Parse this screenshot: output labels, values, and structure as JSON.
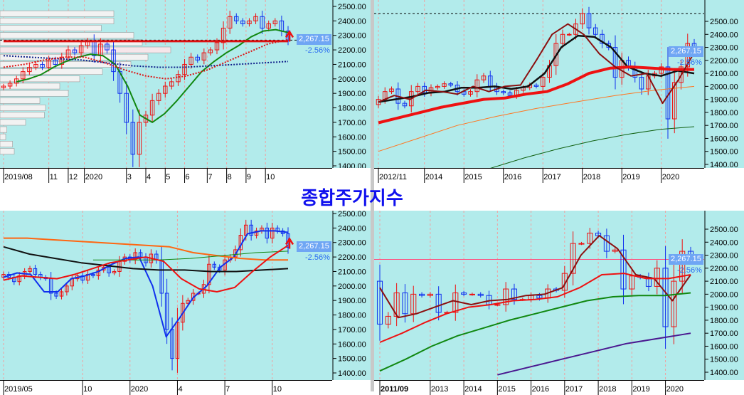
{
  "title": "종합주가지수",
  "price": {
    "current": "2,267.15",
    "change": "-2.56%",
    "current_value": 2267.15
  },
  "colors": {
    "background": "#b2ebeb",
    "up": "#ee1111",
    "down": "#1030ee",
    "title": "#1010ee"
  },
  "chart_data": [
    {
      "id": "daily-volume-profile",
      "type": "candlestick",
      "ylim": [
        1400,
        2500
      ],
      "yticks": [
        1400,
        1500,
        1600,
        1700,
        1800,
        1900,
        2000,
        2100,
        2200,
        2300,
        2400,
        2500
      ],
      "ytick_labels": [
        "1400.00",
        "1500.00",
        "1600.00",
        "1700.00",
        "1800.00",
        "1900.00",
        "2000.00",
        "2100.00",
        "2200.00",
        "2300.00",
        "2400.00",
        "2500.00"
      ],
      "first_open": 1940,
      "closes": [
        1950,
        1970,
        2000,
        2050,
        2080,
        2100,
        2080,
        2130,
        2100,
        2150,
        2200,
        2180,
        2230,
        2260,
        2160,
        2240,
        2200,
        2050,
        1900,
        1700,
        1480,
        1700,
        1750,
        1850,
        1900,
        1950,
        1980,
        2030,
        2100,
        2150,
        2130,
        2180,
        2200,
        2250,
        2350,
        2430,
        2400,
        2380,
        2400,
        2430,
        2350,
        2380,
        2400,
        2330,
        2267
      ],
      "xticks": [
        {
          "label": "2019/08",
          "at": 0
        },
        {
          "label": "11",
          "at": 7
        },
        {
          "label": "12",
          "at": 10
        },
        {
          "label": "2020",
          "at": 12.5
        },
        {
          "label": "3",
          "at": 19
        },
        {
          "label": "4",
          "at": 22
        },
        {
          "label": "5",
          "at": 25
        },
        {
          "label": "6",
          "at": 28
        },
        {
          "label": "7",
          "at": 31.5
        },
        {
          "label": "8",
          "at": 34.5
        },
        {
          "label": "9",
          "at": 37.5
        },
        {
          "label": "10",
          "at": 40.5
        }
      ],
      "volume_profile": {
        "prices": [
          2450,
          2400,
          2350,
          2300,
          2250,
          2200,
          2150,
          2100,
          2050,
          2000,
          1950,
          1900,
          1850,
          1800,
          1750,
          1700,
          1650,
          1600,
          1550,
          1500
        ],
        "volumes": [
          200,
          200,
          178,
          235,
          250,
          300,
          260,
          230,
          180,
          140,
          105,
          120,
          70,
          80,
          78,
          45,
          12,
          10,
          22,
          25
        ]
      },
      "lines": [
        {
          "name": "MA-green",
          "color": "#118811",
          "width": 2,
          "dash": "",
          "start": 2,
          "values": [
            1980,
            2000,
            2030,
            2080,
            2120,
            2150,
            2170,
            2160,
            2100,
            1950,
            1750,
            1700,
            1760,
            1850,
            1950,
            2050,
            2120,
            2180,
            2230,
            2290,
            2330,
            2340,
            2320
          ]
        },
        {
          "name": "level-red",
          "color": "#dd1111",
          "width": 3,
          "dash": "",
          "start": 0,
          "values": [
            2260,
            2260
          ]
        },
        {
          "name": "MA-navy-dotted",
          "color": "#10208a",
          "width": 2,
          "dash": "2,2",
          "start": 0,
          "values": [
            2160,
            2150,
            2140,
            2130,
            2110,
            2090,
            2080,
            2080,
            2090,
            2100,
            2110,
            2120
          ]
        },
        {
          "name": "MA-red-dotted",
          "color": "#dd1111",
          "width": 2,
          "dash": "2,2",
          "start": 0,
          "values": [
            2080,
            2100,
            2130,
            2150,
            2150,
            2110,
            2060,
            2020,
            2000,
            2020,
            2060,
            2120,
            2180,
            2240,
            2270
          ]
        }
      ],
      "reference_line": 2267.15
    },
    {
      "id": "weekly",
      "type": "candlestick",
      "ylim": [
        1400,
        2500
      ],
      "yticks": [
        1400,
        1500,
        1600,
        1700,
        1800,
        1900,
        2000,
        2100,
        2200,
        2300,
        2400,
        2500
      ],
      "ytick_labels": [
        "1400.00",
        "1500.00",
        "1600.00",
        "1700.00",
        "1800.00",
        "1900.00",
        "2000.00",
        "2100.00",
        "2200.00",
        "2300.00",
        "2400.00",
        "2500.00"
      ],
      "first_open": 1860,
      "closes": [
        1900,
        1960,
        1980,
        1870,
        1850,
        1960,
        2000,
        1950,
        1990,
        2000,
        2020,
        2010,
        1960,
        1940,
        1960,
        2050,
        2080,
        2000,
        1960,
        1950,
        1930,
        1970,
        1990,
        2010,
        2000,
        2070,
        2160,
        2330,
        2400,
        2400,
        2480,
        2560,
        2450,
        2400,
        2330,
        2300,
        2070,
        2200,
        2150,
        2070,
        1980,
        2080,
        2100,
        2150,
        1750,
        2030,
        2150,
        2330,
        2267
      ],
      "xticks": [
        {
          "label": "2012/11",
          "at": 0
        },
        {
          "label": "2014",
          "at": 7
        },
        {
          "label": "2015",
          "at": 13
        },
        {
          "label": "2016",
          "at": 19
        },
        {
          "label": "2017",
          "at": 25
        },
        {
          "label": "2018",
          "at": 31
        },
        {
          "label": "2019",
          "at": 37
        },
        {
          "label": "2020",
          "at": 43
        }
      ],
      "lines": [
        {
          "name": "MA-black",
          "color": "#111111",
          "width": 2.5,
          "dash": "",
          "start": 0,
          "values": [
            1880,
            1900,
            1920,
            1950,
            1960,
            1990,
            1990,
            2000,
            1980,
            2000,
            2100,
            2300,
            2390,
            2380,
            2300,
            2150,
            2100,
            2080,
            2120,
            2100
          ]
        },
        {
          "name": "MA-red",
          "color": "#ee1111",
          "width": 4,
          "dash": "",
          "start": 0,
          "values": [
            1720,
            1760,
            1800,
            1840,
            1870,
            1900,
            1910,
            1940,
            1960,
            2020,
            2100,
            2140,
            2150,
            2140,
            2130,
            2130
          ]
        },
        {
          "name": "MA-orange",
          "color": "#ff7722",
          "width": 1,
          "dash": "",
          "start": 0,
          "values": [
            1500,
            1600,
            1700,
            1770,
            1830,
            1880,
            1930,
            1970,
            2000
          ]
        },
        {
          "name": "MA-darkgreen",
          "color": "#106010",
          "width": 1,
          "dash": "",
          "start": 17,
          "values": [
            1370,
            1450,
            1520,
            1580,
            1630,
            1670,
            1690
          ]
        },
        {
          "name": "MA-darkred",
          "color": "#8b1010",
          "width": 2,
          "dash": "",
          "start": 0,
          "values": [
            1880,
            1930,
            1900,
            1970,
            1960,
            1940,
            2000,
            1960,
            2000,
            2010,
            2200,
            2400,
            2480,
            2400,
            2250,
            2150,
            2080,
            2100,
            1870,
            2050,
            2260
          ]
        }
      ],
      "reference_line": 2560
    },
    {
      "id": "daily",
      "type": "candlestick",
      "ylim": [
        1400,
        2500
      ],
      "yticks": [
        1400,
        1500,
        1600,
        1700,
        1800,
        1900,
        2000,
        2100,
        2200,
        2300,
        2400,
        2500
      ],
      "ytick_labels": [
        "1400.00",
        "1500.00",
        "1600.00",
        "1700.00",
        "1800.00",
        "1900.00",
        "2000.00",
        "2100.00",
        "2200.00",
        "2300.00",
        "2400.00",
        "2500.00"
      ],
      "first_open": 2060,
      "closes": [
        2080,
        2060,
        2030,
        2070,
        2100,
        2120,
        2080,
        2060,
        2050,
        1950,
        1930,
        1960,
        2000,
        2050,
        2070,
        2040,
        2080,
        2070,
        2110,
        2130,
        2090,
        2100,
        2170,
        2200,
        2180,
        2230,
        2200,
        2160,
        2220,
        2180,
        1950,
        1700,
        1500,
        1750,
        1880,
        1900,
        1950,
        1950,
        2010,
        2150,
        2130,
        2110,
        2180,
        2200,
        2250,
        2350,
        2420,
        2350,
        2380,
        2400,
        2330,
        2400,
        2380,
        2360,
        2267
      ],
      "xticks": [
        {
          "label": "2019/05",
          "at": 0
        },
        {
          "label": "10",
          "at": 15
        },
        {
          "label": "2020",
          "at": 24
        },
        {
          "label": "4",
          "at": 33
        },
        {
          "label": "7",
          "at": 42
        },
        {
          "label": "10",
          "at": 51
        }
      ],
      "lines": [
        {
          "name": "MA-blue",
          "color": "#1030ee",
          "width": 2,
          "dash": "",
          "start": 0,
          "values": [
            2060,
            2090,
            2080,
            1960,
            1960,
            2050,
            2070,
            2100,
            2150,
            2190,
            2200,
            2000,
            1650,
            1780,
            1920,
            2000,
            2130,
            2200,
            2360,
            2380,
            2380,
            2370
          ]
        },
        {
          "name": "MA-orange",
          "color": "#ff6611",
          "width": 2,
          "dash": "",
          "start": 0,
          "values": [
            2330,
            2330,
            2320,
            2310,
            2300,
            2290,
            2280,
            2270,
            2230,
            2210,
            2190,
            2180,
            2180
          ]
        },
        {
          "name": "MA-black",
          "color": "#111111",
          "width": 2,
          "dash": "",
          "start": 0,
          "values": [
            2270,
            2220,
            2190,
            2160,
            2140,
            2120,
            2110,
            2110,
            2100,
            2100,
            2110,
            2120
          ]
        },
        {
          "name": "MA-green",
          "color": "#118811",
          "width": 1,
          "dash": "",
          "start": 17,
          "values": [
            2180,
            2180,
            2180,
            2190,
            2210,
            2230,
            2240
          ]
        },
        {
          "name": "MA-red",
          "color": "#ee1111",
          "width": 2,
          "dash": "",
          "start": 0,
          "values": [
            2040,
            2070,
            2060,
            2050,
            2080,
            2120,
            2160,
            2180,
            2200,
            2170,
            2050,
            1980,
            1960,
            1990,
            2100,
            2200,
            2280
          ]
        }
      ]
    },
    {
      "id": "quarterly",
      "type": "candlestick",
      "ylim": [
        1400,
        2500
      ],
      "yticks": [
        1400,
        1500,
        1600,
        1700,
        1800,
        1900,
        2000,
        2100,
        2200,
        2300,
        2400,
        2500
      ],
      "ytick_labels": [
        "1400.00",
        "1500.00",
        "1600.00",
        "1700.00",
        "1800.00",
        "1900.00",
        "2000.00",
        "2100.00",
        "2200.00",
        "2300.00",
        "2400.00",
        "2500.00"
      ],
      "first_open": 2100,
      "closes": [
        1770,
        1830,
        2010,
        1850,
        2000,
        1990,
        2000,
        1860,
        1860,
        2010,
        2000,
        2000,
        1990,
        1920,
        1920,
        2040,
        1960,
        1960,
        1990,
        1970,
        2040,
        2030,
        2160,
        2390,
        2390,
        2470,
        2450,
        2330,
        2340,
        2040,
        2140,
        2130,
        2060,
        2200,
        1750,
        2100,
        2330,
        2267
      ],
      "xticks": [
        {
          "label": "2011/09",
          "at": 0
        },
        {
          "label": "2013",
          "at": 6
        },
        {
          "label": "2014",
          "at": 10
        },
        {
          "label": "2015",
          "at": 14
        },
        {
          "label": "2016",
          "at": 18
        },
        {
          "label": "2017",
          "at": 22
        },
        {
          "label": "2018",
          "at": 26
        },
        {
          "label": "2019",
          "at": 30
        },
        {
          "label": "2020",
          "at": 34
        }
      ],
      "lines": [
        {
          "name": "MA-darkred",
          "color": "#8b1010",
          "width": 2,
          "dash": "",
          "start": 0,
          "values": [
            2050,
            1820,
            1850,
            1900,
            1950,
            1920,
            1950,
            1960,
            1990,
            2000,
            2050,
            2300,
            2450,
            2350,
            2150,
            2120,
            1950,
            2150
          ]
        },
        {
          "name": "MA-red",
          "color": "#ee1111",
          "width": 2,
          "dash": "",
          "start": 0,
          "values": [
            1630,
            1700,
            1780,
            1850,
            1900,
            1920,
            1950,
            1960,
            1980,
            2050,
            2150,
            2160,
            2120,
            2120,
            2150
          ]
        },
        {
          "name": "MA-green",
          "color": "#118811",
          "width": 2,
          "dash": "",
          "start": 0,
          "values": [
            1410,
            1500,
            1600,
            1680,
            1740,
            1800,
            1850,
            1900,
            1950,
            1980,
            1990,
            1990,
            2010
          ]
        },
        {
          "name": "MA-purple",
          "color": "#4a1890",
          "width": 2,
          "dash": "",
          "start": 14,
          "values": [
            1380,
            1440,
            1500,
            1560,
            1620,
            1660,
            1700
          ]
        }
      ],
      "reference_line": 2267.15
    }
  ]
}
